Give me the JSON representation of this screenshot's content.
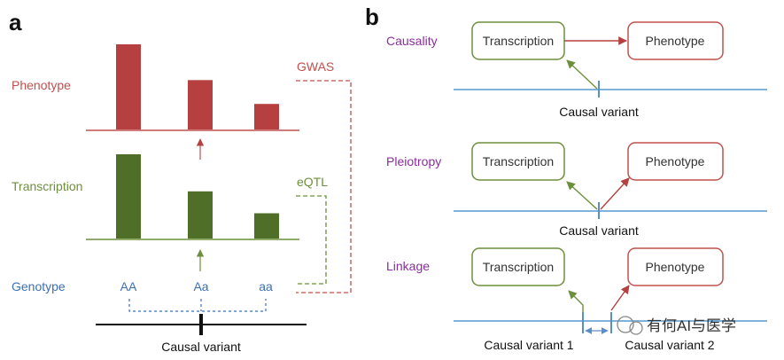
{
  "colors": {
    "red": "#c0504d",
    "red_fill": "#b5403f",
    "green": "#6d8f3c",
    "green_fill": "#4f6f28",
    "blue": "#3b6fb6",
    "line_blue": "#7fb3dc",
    "purple": "#8b2d9e",
    "black": "#111111"
  },
  "panel_a": {
    "letter": "a",
    "phenotype_label": "Phenotype",
    "transcription_label": "Transcription",
    "genotype_label": "Genotype",
    "gwas_label": "GWAS",
    "eqtl_label": "eQTL",
    "genotypes": [
      "AA",
      "Aa",
      "aa"
    ],
    "causal_variant_label": "Causal variant",
    "phenotype_levels": [
      1.0,
      0.58,
      0.3
    ],
    "transcription_levels": [
      1.0,
      0.56,
      0.3
    ]
  },
  "panel_b": {
    "letter": "b",
    "rows": [
      {
        "name": "Causality",
        "transcription_box": "Transcription",
        "phenotype_box": "Phenotype",
        "variant_labels": [
          "Causal variant"
        ]
      },
      {
        "name": "Pleiotropy",
        "transcription_box": "Transcription",
        "phenotype_box": "Phenotype",
        "variant_labels": [
          "Causal variant"
        ]
      },
      {
        "name": "Linkage",
        "transcription_box": "Transcription",
        "phenotype_box": "Phenotype",
        "variant_labels": [
          "Causal variant 1",
          "Causal variant 2"
        ]
      }
    ]
  },
  "watermark": {
    "text": "有何AI与医学"
  }
}
